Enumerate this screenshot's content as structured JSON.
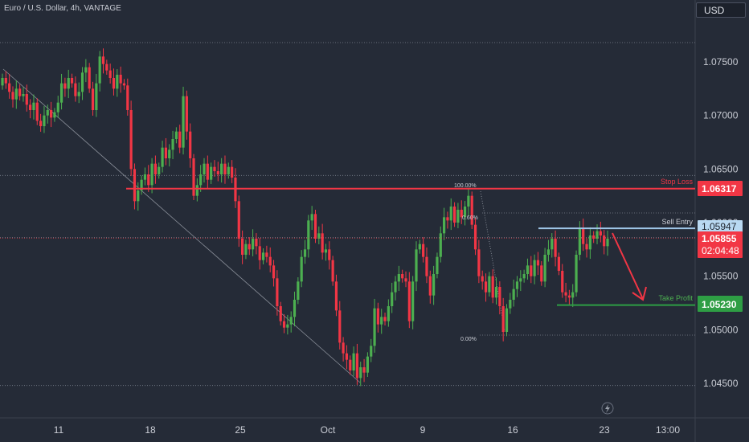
{
  "header": {
    "title": "Euro / U.S. Dollar, 4h, VANTAGE",
    "currency": "USD"
  },
  "colors": {
    "background": "#252b37",
    "bull": "#4caf50",
    "bear": "#f23645",
    "stop_loss": "#f23645",
    "sell_entry": "#9fc6e8",
    "take_profit": "#2e9e44"
  },
  "chart_data": {
    "type": "candlestick",
    "title": "Euro / U.S. Dollar, 4h, VANTAGE",
    "ylim": [
      1.0435,
      1.0785
    ],
    "y_ticks": [
      1.045,
      1.05,
      1.055,
      1.06,
      1.065,
      1.07,
      1.075
    ],
    "y_tick_labels": [
      "1.04500",
      "1.05000",
      "1.05500",
      "1.06000",
      "1.06500",
      "1.07000",
      "1.07500"
    ],
    "x_ticks": [
      "11",
      "18",
      "25",
      "Oct",
      "9",
      "16",
      "23",
      "13:00"
    ],
    "price_line": {
      "label": "1.05855",
      "value": 1.05855,
      "countdown": "02:04:48"
    },
    "levels": [
      {
        "name": "Stop Loss",
        "value": 1.06317,
        "label": "1.06317"
      },
      {
        "name": "Sell Entry",
        "value": 1.05947,
        "label": "1.05947"
      },
      {
        "name": "Take Profit",
        "value": 1.0523,
        "label": "1.05230"
      }
    ],
    "fibonacci": [
      {
        "label": "100.00%",
        "value": 1.0633
      },
      {
        "label": "0.60%",
        "value": 1.0609
      },
      {
        "label": "0.00%",
        "value": 1.0495
      }
    ],
    "dotted_levels": [
      1.0768,
      1.0644,
      1.0586,
      1.0609,
      1.0495,
      1.0448
    ],
    "candles_close": [
      1.0735,
      1.073,
      1.0722,
      1.0715,
      1.0725,
      1.0718,
      1.072,
      1.071,
      1.0705,
      1.0712,
      1.0695,
      1.069,
      1.07,
      1.0705,
      1.0698,
      1.0703,
      1.0712,
      1.073,
      1.0725,
      1.0735,
      1.073,
      1.0718,
      1.0722,
      1.074,
      1.0745,
      1.0725,
      1.0705,
      1.073,
      1.0755,
      1.0748,
      1.0742,
      1.0735,
      1.0725,
      1.0738,
      1.073,
      1.0728,
      1.0705,
      1.065,
      1.062,
      1.063,
      1.064,
      1.0645,
      1.0635,
      1.0655,
      1.0645,
      1.0652,
      1.067,
      1.066,
      1.0668,
      1.0678,
      1.0685,
      1.067,
      1.0718,
      1.0685,
      1.066,
      1.0625,
      1.0635,
      1.0645,
      1.0655,
      1.064,
      1.0652,
      1.0648,
      1.0645,
      1.0655,
      1.0645,
      1.0652,
      1.0642,
      1.062,
      1.0585,
      1.057,
      1.058,
      1.0575,
      1.0585,
      1.0578,
      1.0565,
      1.0572,
      1.0568,
      1.056,
      1.0548,
      1.0522,
      1.0508,
      1.0502,
      1.0505,
      1.0512,
      1.0528,
      1.0545,
      1.0568,
      1.0575,
      1.0602,
      1.0608,
      1.0585,
      1.059,
      1.0572,
      1.0575,
      1.0565,
      1.0545,
      1.0518,
      1.0488,
      1.0478,
      1.0472,
      1.0462,
      1.0478,
      1.0455,
      1.0465,
      1.046,
      1.0475,
      1.0485,
      1.052,
      1.0505,
      1.0512,
      1.0508,
      1.0522,
      1.0535,
      1.0545,
      1.0552,
      1.0548,
      1.0545,
      1.0508,
      1.0545,
      1.0575,
      1.058,
      1.0568,
      1.055,
      1.0532,
      1.0552,
      1.0568,
      1.059,
      1.0605,
      1.0602,
      1.0615,
      1.06,
      1.0612,
      1.0605,
      1.0615,
      1.0625,
      1.0598,
      1.0575,
      1.055,
      1.0545,
      1.0535,
      1.055,
      1.053,
      1.054,
      1.0522,
      1.0498,
      1.052,
      1.0528,
      1.0538,
      1.0545,
      1.0548,
      1.0552,
      1.056,
      1.055,
      1.0565,
      1.056,
      1.0545,
      1.057,
      1.0575,
      1.0585,
      1.0568,
      1.0555,
      1.0535,
      1.0532,
      1.053,
      1.0535,
      1.057,
      1.0595,
      1.058,
      1.0575,
      1.0588,
      1.0585,
      1.0592,
      1.0588,
      1.0578,
      1.0585
    ]
  },
  "annotations": {
    "stop_loss_text": "Stop Loss",
    "sell_entry_text": "Sell Entry",
    "take_profit_text": "Take Profit"
  },
  "icons": {
    "lightning": "lightning-icon"
  }
}
